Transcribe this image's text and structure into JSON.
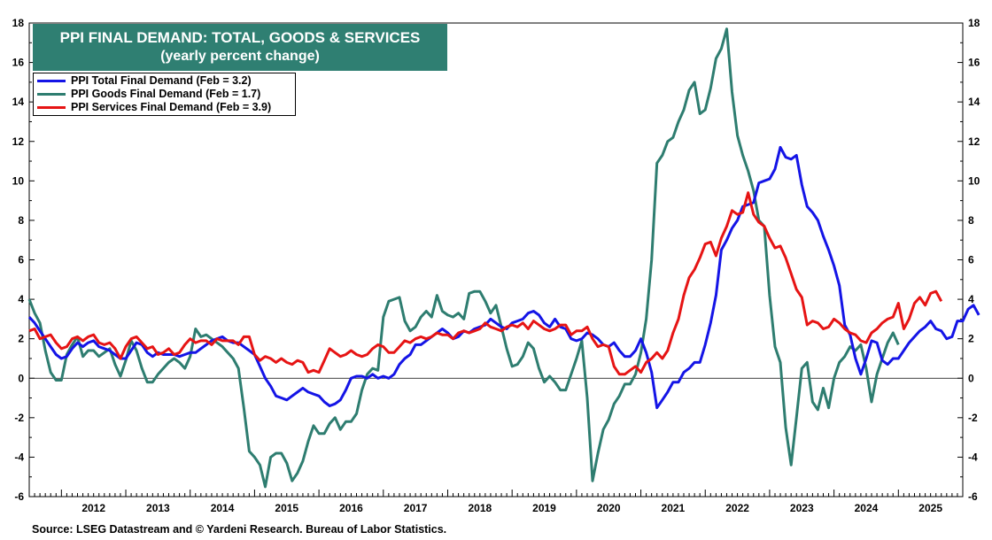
{
  "chart_data": {
    "type": "line",
    "title": "PPI FINAL DEMAND: TOTAL, GOODS & SERVICES",
    "subtitle": "(yearly percent change)",
    "source": "Source: LSEG Datastream and © Yardeni Research. Bureau of Labor Statistics.",
    "x_start": "2011-07",
    "x_end": "2025-12",
    "x_ticks": [
      "2012",
      "2013",
      "2014",
      "2015",
      "2016",
      "2017",
      "2018",
      "2019",
      "2020",
      "2021",
      "2022",
      "2023",
      "2024",
      "2025"
    ],
    "ylim": [
      -6,
      18
    ],
    "y_ticks": [
      "-6",
      "-4",
      "-2",
      "0",
      "2",
      "4",
      "6",
      "8",
      "10",
      "12",
      "14",
      "16",
      "18"
    ],
    "grid": false,
    "zero_line": true,
    "legend_placement": "top-left",
    "start_month": "2011-07",
    "series": [
      {
        "name": "PPI Total Final Demand (Feb = 3.2)",
        "color": "#1414e6",
        "values": [
          3.1,
          2.8,
          2.4,
          2.0,
          1.6,
          1.2,
          1.0,
          1.1,
          1.5,
          1.8,
          1.6,
          1.8,
          1.9,
          1.6,
          1.5,
          1.4,
          1.2,
          1.0,
          1.0,
          1.4,
          1.8,
          1.7,
          1.3,
          1.1,
          1.3,
          1.2,
          1.2,
          1.2,
          1.1,
          1.2,
          1.3,
          1.3,
          1.5,
          1.7,
          1.9,
          2.0,
          2.1,
          1.9,
          1.8,
          1.8,
          1.6,
          1.4,
          1.2,
          0.6,
          0.0,
          -0.4,
          -0.9,
          -1.0,
          -1.1,
          -0.9,
          -0.7,
          -0.5,
          -0.7,
          -0.8,
          -0.9,
          -1.2,
          -1.4,
          -1.3,
          -1.1,
          -0.6,
          0.0,
          0.1,
          0.1,
          0.0,
          0.2,
          0.0,
          0.1,
          0.0,
          0.2,
          0.7,
          1.0,
          1.2,
          1.7,
          1.7,
          1.9,
          2.1,
          2.3,
          2.5,
          2.3,
          2.0,
          2.1,
          2.4,
          2.3,
          2.5,
          2.6,
          2.7,
          3.0,
          2.8,
          2.6,
          2.5,
          2.8,
          2.9,
          3.0,
          3.3,
          3.4,
          3.2,
          2.8,
          2.6,
          3.0,
          2.6,
          2.5,
          2.0,
          1.9,
          2.0,
          2.3,
          2.2,
          2.0,
          1.7,
          1.6,
          1.8,
          1.4,
          1.1,
          1.1,
          1.4,
          2.0,
          1.3,
          0.3,
          -1.5,
          -1.1,
          -0.7,
          -0.2,
          -0.2,
          0.3,
          0.5,
          0.8,
          0.8,
          1.7,
          2.8,
          4.2,
          6.5,
          7.0,
          7.6,
          8.0,
          8.7,
          8.8,
          8.9,
          9.9,
          10.0,
          10.1,
          10.6,
          11.7,
          11.2,
          11.1,
          11.3,
          9.8,
          8.7,
          8.4,
          8.0,
          7.2,
          6.5,
          5.7,
          4.7,
          2.7,
          2.2,
          1.0,
          0.2,
          1.0,
          1.9,
          1.8,
          0.9,
          0.7,
          1.0,
          1.0,
          1.4,
          1.8,
          2.1,
          2.4,
          2.6,
          2.9,
          2.5,
          2.4,
          2.0,
          2.1,
          2.9,
          2.9,
          3.5,
          3.7,
          3.2
        ]
      },
      {
        "name": "PPI Goods Final Demand (Feb = 1.7)",
        "color": "#2e7d70",
        "values": [
          4.0,
          3.3,
          2.8,
          1.4,
          0.3,
          -0.1,
          -0.1,
          1.2,
          1.7,
          2.1,
          1.1,
          1.4,
          1.4,
          1.1,
          1.3,
          1.5,
          0.7,
          0.1,
          0.9,
          1.9,
          1.4,
          0.5,
          -0.2,
          -0.2,
          0.2,
          0.5,
          0.8,
          1.0,
          0.8,
          0.5,
          1.1,
          2.5,
          2.1,
          2.2,
          2.0,
          1.8,
          1.6,
          1.3,
          1.0,
          0.5,
          -1.5,
          -3.7,
          -4.0,
          -4.4,
          -5.5,
          -4.0,
          -3.8,
          -3.8,
          -4.3,
          -5.2,
          -4.8,
          -4.2,
          -3.2,
          -2.4,
          -2.8,
          -2.8,
          -2.3,
          -2.0,
          -2.6,
          -2.2,
          -2.2,
          -1.8,
          -0.6,
          0.2,
          0.5,
          0.4,
          3.1,
          3.9,
          4.0,
          4.1,
          2.9,
          2.4,
          2.6,
          3.1,
          3.4,
          3.1,
          4.2,
          3.4,
          3.2,
          3.1,
          3.3,
          3.0,
          4.3,
          4.4,
          4.4,
          3.9,
          3.3,
          3.7,
          2.6,
          1.5,
          0.6,
          0.7,
          1.1,
          1.8,
          1.5,
          0.5,
          -0.2,
          0.1,
          -0.2,
          -0.6,
          -0.6,
          0.2,
          1.0,
          1.9,
          -1.0,
          -5.2,
          -3.8,
          -2.6,
          -2.1,
          -1.3,
          -0.9,
          -0.3,
          -0.3,
          0.2,
          1.3,
          3.0,
          6.0,
          10.9,
          11.3,
          12.0,
          12.2,
          13.0,
          13.6,
          14.6,
          15.0,
          13.4,
          13.6,
          14.7,
          16.2,
          16.7,
          17.7,
          14.5,
          12.3,
          11.3,
          10.5,
          9.5,
          8.0,
          7.7,
          4.2,
          1.6,
          0.8,
          -2.5,
          -4.4,
          -2.0,
          0.5,
          0.8,
          -1.2,
          -1.6,
          -0.5,
          -1.5,
          0.0,
          0.8,
          1.1,
          1.6,
          1.4,
          1.7,
          0.5,
          -1.2,
          0.2,
          1.0,
          1.8,
          2.3,
          1.7
        ]
      },
      {
        "name": "PPI Services Final Demand (Feb = 3.9)",
        "color": "#e61414",
        "values": [
          2.4,
          2.5,
          2.0,
          2.1,
          2.2,
          1.8,
          1.5,
          1.6,
          2.0,
          2.1,
          1.9,
          2.1,
          2.2,
          1.8,
          1.7,
          1.8,
          1.5,
          1.0,
          1.6,
          2.0,
          2.1,
          1.8,
          1.5,
          1.6,
          1.2,
          1.3,
          1.5,
          1.2,
          1.3,
          1.7,
          2.0,
          1.8,
          1.9,
          1.9,
          1.7,
          2.0,
          1.9,
          1.9,
          1.9,
          1.7,
          2.1,
          2.1,
          1.2,
          0.9,
          1.1,
          1.0,
          0.8,
          1.0,
          0.8,
          0.7,
          0.9,
          0.8,
          0.3,
          0.4,
          0.3,
          0.9,
          1.5,
          1.3,
          1.1,
          1.2,
          1.4,
          1.2,
          1.1,
          1.2,
          1.5,
          1.7,
          1.6,
          1.3,
          1.3,
          1.6,
          1.9,
          1.8,
          2.0,
          2.1,
          2.0,
          2.1,
          2.3,
          2.2,
          2.2,
          2.0,
          2.3,
          2.4,
          2.3,
          2.4,
          2.5,
          2.8,
          2.6,
          2.5,
          2.4,
          2.6,
          2.7,
          2.6,
          2.8,
          2.5,
          2.9,
          2.7,
          2.5,
          2.4,
          2.5,
          2.7,
          2.7,
          2.2,
          2.4,
          2.4,
          2.6,
          2.0,
          1.6,
          1.7,
          1.6,
          0.6,
          0.2,
          0.2,
          0.4,
          0.6,
          0.3,
          0.8,
          1.0,
          1.3,
          1.0,
          1.4,
          2.3,
          3.0,
          4.2,
          5.1,
          5.5,
          6.1,
          6.8,
          6.9,
          6.2,
          7.1,
          7.7,
          8.5,
          8.3,
          8.4,
          9.4,
          8.3,
          7.9,
          7.7,
          7.1,
          6.6,
          6.7,
          6.1,
          5.3,
          4.5,
          4.1,
          2.7,
          2.9,
          2.8,
          2.5,
          2.6,
          3.0,
          2.8,
          2.5,
          2.3,
          2.2,
          1.9,
          1.8,
          2.3,
          2.5,
          2.8,
          3.0,
          3.1,
          3.8,
          2.5,
          3.0,
          3.8,
          4.1,
          3.7,
          4.3,
          4.4,
          3.9
        ]
      }
    ]
  }
}
